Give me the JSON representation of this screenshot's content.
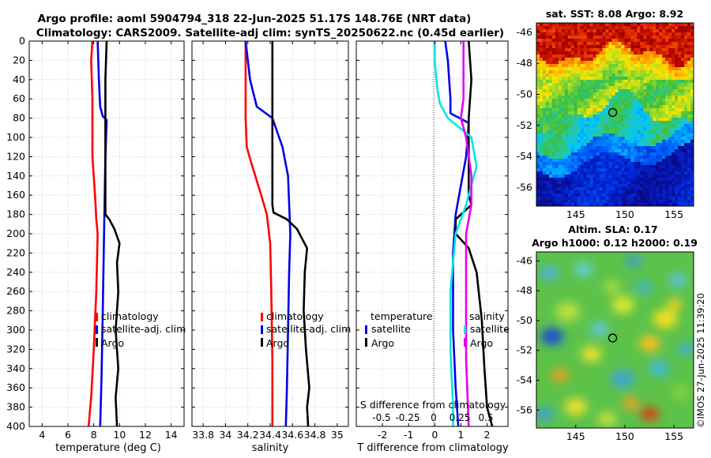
{
  "header": {
    "title_line1": "Argo profile: aoml 5904794_318 22-Jun-2025 51.17S 148.76E (NRT data)",
    "title_line2": "Climatology: CARS2009. Satellite-adj clim: synTS_20250622.nc (0.45d earlier)"
  },
  "watermark": "©IMOS 27-Jun-2025 11:39:20",
  "colors": {
    "climatology": "#ff0000",
    "satellite": "#0000e6",
    "argo": "#000000",
    "salinity_diff": "#e600e6",
    "salinity_sat_diff": "#00e6e6",
    "zero_line": "#555555"
  },
  "chart_data": [
    {
      "type": "line",
      "id": "temperature",
      "xlabel": "temperature (deg C)",
      "ylabel": "",
      "xlim": [
        3,
        15
      ],
      "ylim": [
        400,
        0
      ],
      "xticks": [
        4,
        6,
        8,
        10,
        12,
        14
      ],
      "yticks": [
        0,
        20,
        40,
        60,
        80,
        100,
        120,
        140,
        160,
        180,
        200,
        220,
        240,
        260,
        280,
        300,
        320,
        340,
        360,
        380,
        400
      ],
      "legend": [
        "climatology",
        "satellite-adj. clim",
        "Argo"
      ],
      "legend_location": "center-right",
      "series": [
        {
          "name": "climatology",
          "color": "#ff0000",
          "x": [
            7.9,
            7.8,
            7.9,
            7.9,
            8.1,
            8.2,
            8.3,
            8.2,
            8.0,
            7.8,
            7.6
          ],
          "depth": [
            0,
            20,
            60,
            120,
            160,
            185,
            200,
            260,
            320,
            370,
            400
          ]
        },
        {
          "name": "satellite-adj. clim",
          "color": "#0000e6",
          "x": [
            8.3,
            8.4,
            8.5,
            8.7,
            9.0,
            8.9,
            8.8,
            8.7,
            8.6,
            8.5
          ],
          "depth": [
            0,
            40,
            68,
            78,
            82,
            120,
            200,
            280,
            350,
            400
          ]
        },
        {
          "name": "Argo",
          "color": "#000000",
          "x": [
            9.0,
            8.9,
            8.9,
            8.9,
            8.9,
            9.2,
            9.6,
            10.0,
            9.8,
            9.9,
            9.7,
            9.9,
            9.7,
            9.8
          ],
          "depth": [
            0,
            40,
            80,
            120,
            180,
            185,
            195,
            210,
            230,
            260,
            300,
            340,
            370,
            400
          ]
        }
      ]
    },
    {
      "type": "line",
      "id": "salinity",
      "xlabel": "salinity",
      "xlim": [
        33.7,
        35.1
      ],
      "ylim": [
        400,
        0
      ],
      "xticks": [
        33.8,
        34,
        34.2,
        34.4,
        34.6,
        34.8,
        35
      ],
      "xtick_labels": [
        "33.8",
        "34",
        "34.2",
        "34.4",
        "34.6",
        "34.8",
        "35"
      ],
      "legend": [
        "climatology",
        "satellite-adj. clim",
        "Argo"
      ],
      "legend_location": "center-right",
      "series": [
        {
          "name": "climatology",
          "color": "#ff0000",
          "x": [
            34.18,
            34.18,
            34.18,
            34.19,
            34.24,
            34.32,
            34.37,
            34.4,
            34.41,
            34.42,
            34.42
          ],
          "depth": [
            0,
            40,
            80,
            110,
            130,
            160,
            180,
            210,
            260,
            330,
            400
          ]
        },
        {
          "name": "satellite-adj. clim",
          "color": "#0000e6",
          "x": [
            34.18,
            34.22,
            34.28,
            34.42,
            34.51,
            34.56,
            34.58,
            34.57,
            34.56,
            34.55,
            34.54
          ],
          "depth": [
            0,
            40,
            68,
            80,
            110,
            140,
            200,
            240,
            300,
            360,
            400
          ]
        },
        {
          "name": "Argo",
          "color": "#000000",
          "x": [
            34.42,
            34.42,
            34.42,
            34.42,
            34.43,
            34.55,
            34.64,
            34.73,
            34.71,
            34.7,
            34.72,
            34.75,
            34.73,
            34.74
          ],
          "depth": [
            0,
            60,
            120,
            170,
            178,
            185,
            195,
            215,
            240,
            280,
            320,
            360,
            380,
            400
          ]
        }
      ]
    },
    {
      "type": "line",
      "id": "difference",
      "xlabel": "T difference from climatology",
      "xlabel_top": "S difference from climatology",
      "xlim": [
        -3,
        2.8
      ],
      "ylim": [
        400,
        0
      ],
      "xticks": [
        -2,
        -1,
        0,
        1,
        2
      ],
      "xtick_labels": [
        "-2",
        "-1",
        "0",
        "1",
        "2"
      ],
      "s_ticks": [
        "-0.5",
        "-0.25",
        "0",
        "0.25",
        "0.5"
      ],
      "legend_left": [
        "temperature",
        "satellite",
        "Argo"
      ],
      "legend_right": [
        "salinity",
        "satellite",
        "Argo"
      ],
      "series": [
        {
          "name": "temperature satellite",
          "color": "#0000e6",
          "x": [
            0.4,
            0.5,
            0.6,
            0.6,
            1.3,
            1.2,
            0.8,
            0.7,
            0.7,
            0.8,
            0.9
          ],
          "depth": [
            0,
            20,
            60,
            75,
            85,
            120,
            180,
            220,
            300,
            360,
            400
          ]
        },
        {
          "name": "temperature Argo",
          "color": "#000000",
          "x": [
            1.3,
            1.4,
            1.3,
            1.3,
            1.3,
            1.4,
            0.8,
            0.8,
            1.3,
            1.6,
            1.8,
            1.9,
            2.0,
            2.2
          ],
          "depth": [
            0,
            40,
            80,
            120,
            160,
            170,
            185,
            200,
            215,
            240,
            290,
            340,
            380,
            400
          ]
        },
        {
          "name": "salinity satellite",
          "color": "#00e6e6",
          "x": [
            0.0,
            0.0,
            0.1,
            0.2,
            0.5,
            1.4,
            1.6,
            1.2,
            0.8,
            0.6,
            0.6,
            0.7,
            0.7
          ],
          "depth": [
            0,
            20,
            50,
            65,
            80,
            100,
            130,
            170,
            200,
            260,
            320,
            380,
            400
          ]
        },
        {
          "name": "salinity Argo",
          "color": "#e600e6",
          "x": [
            1.1,
            1.1,
            1.0,
            1.2,
            1.4,
            1.4,
            1.2,
            1.2,
            1.2,
            1.3
          ],
          "depth": [
            0,
            60,
            80,
            100,
            140,
            170,
            200,
            260,
            330,
            400
          ]
        }
      ]
    },
    {
      "type": "heatmap",
      "id": "sst_map",
      "title": "sat. SST: 8.08 Argo: 8.92",
      "xticks": [
        145,
        150,
        155
      ],
      "yticks": [
        -46,
        -48,
        -50,
        -52,
        -54,
        -56
      ],
      "xlim": [
        141,
        157
      ],
      "ylim": [
        -57.2,
        -45.4
      ],
      "profile_location": [
        148.76,
        -51.17
      ]
    },
    {
      "type": "heatmap",
      "id": "sla_map",
      "title_line1": "Altim. SLA: 0.17",
      "title_line2": "Argo h1000: 0.12 h2000: 0.19",
      "xticks": [
        145,
        150,
        155
      ],
      "yticks": [
        -46,
        -48,
        -50,
        -52,
        -54,
        -56
      ],
      "xlim": [
        141,
        157
      ],
      "ylim": [
        -57.2,
        -45.4
      ],
      "profile_location": [
        148.76,
        -51.17
      ]
    }
  ]
}
